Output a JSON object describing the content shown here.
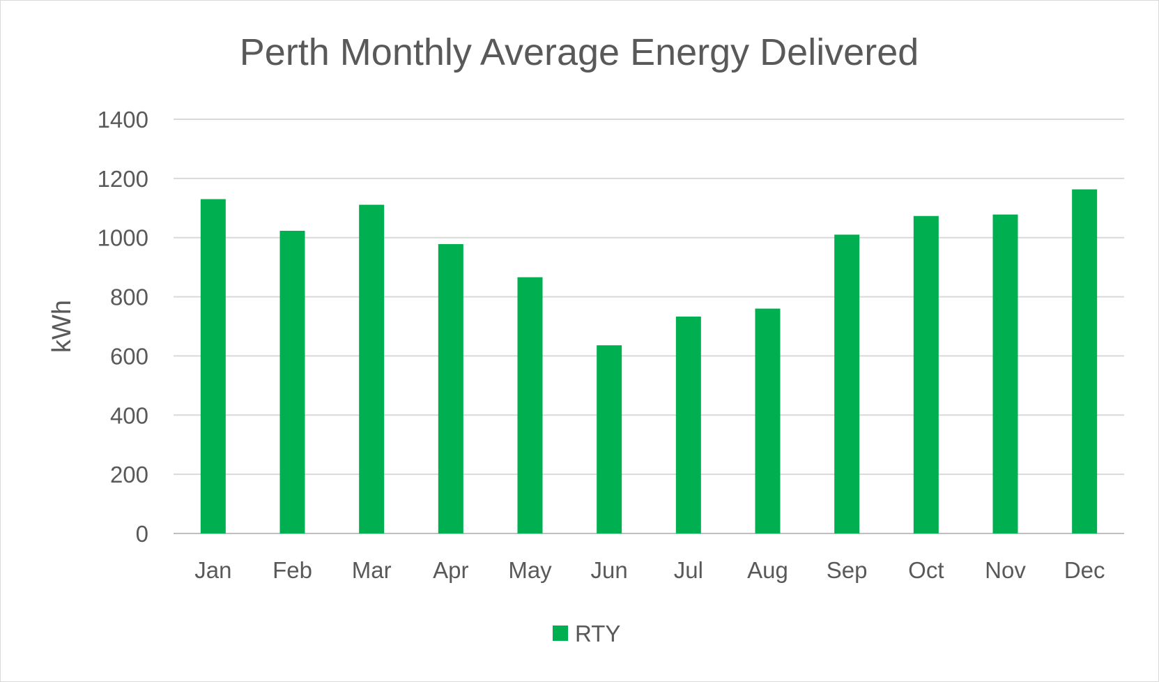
{
  "chart_data": {
    "type": "bar",
    "title": "Perth Monthly Average Energy Delivered",
    "xlabel": "",
    "ylabel": "kWh",
    "categories": [
      "Jan",
      "Feb",
      "Mar",
      "Apr",
      "May",
      "Jun",
      "Jul",
      "Aug",
      "Sep",
      "Oct",
      "Nov",
      "Dec"
    ],
    "series": [
      {
        "name": "RTY",
        "color": "#00b050",
        "values": [
          1130,
          1023,
          1111,
          978,
          866,
          636,
          733,
          760,
          1010,
          1073,
          1078,
          1163
        ]
      }
    ],
    "ylim": [
      0,
      1400
    ],
    "yticks": [
      "0",
      "200",
      "400",
      "600",
      "800",
      "1000",
      "1200",
      "1400"
    ],
    "grid": true,
    "legend": "bottom-center",
    "colors": {
      "text": "#595959",
      "grid": "#d9d9d9",
      "border": "#d9d9d9"
    }
  }
}
